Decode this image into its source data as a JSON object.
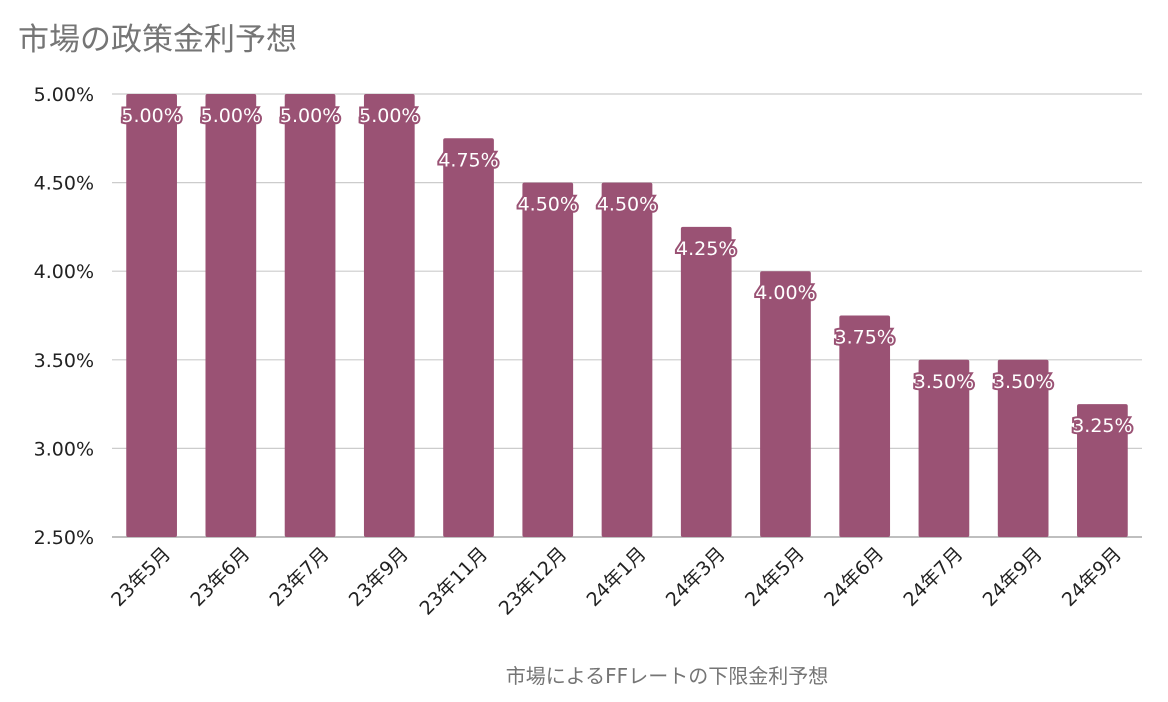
{
  "chart_data": {
    "type": "bar",
    "title": "市場の政策金利予想",
    "xlabel": "市場によるFFレートの下限金利予想",
    "ylabel": "",
    "categories": [
      "23年5月",
      "23年6月",
      "23年7月",
      "23年9月",
      "23年11月",
      "23年12月",
      "24年1月",
      "24年3月",
      "24年5月",
      "24年6月",
      "24年7月",
      "24年9月",
      "24年9月"
    ],
    "values": [
      5.0,
      5.0,
      5.0,
      5.0,
      4.75,
      4.5,
      4.5,
      4.25,
      4.0,
      3.75,
      3.5,
      3.5,
      3.25
    ],
    "data_labels": [
      "5.00%",
      "5.00%",
      "5.00%",
      "5.00%",
      "4.75%",
      "4.50%",
      "4.50%",
      "4.25%",
      "4.00%",
      "3.75%",
      "3.50%",
      "3.50%",
      "3.25%"
    ],
    "ylim": [
      2.5,
      5.0
    ],
    "yticks": [
      2.5,
      3.0,
      3.5,
      4.0,
      4.5,
      5.0
    ],
    "ytick_labels": [
      "2.50%",
      "3.00%",
      "3.50%",
      "4.00%",
      "4.50%",
      "5.00%"
    ],
    "grid": true,
    "legend": "none",
    "colors": {
      "bar": "#9a5274",
      "grid": "#cccccc",
      "axis": "#999999"
    }
  }
}
